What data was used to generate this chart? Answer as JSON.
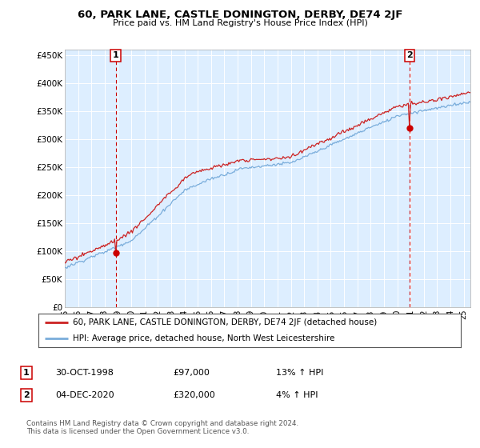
{
  "title": "60, PARK LANE, CASTLE DONINGTON, DERBY, DE74 2JF",
  "subtitle": "Price paid vs. HM Land Registry's House Price Index (HPI)",
  "ylabel_ticks": [
    "£0",
    "£50K",
    "£100K",
    "£150K",
    "£200K",
    "£250K",
    "£300K",
    "£350K",
    "£400K",
    "£450K"
  ],
  "ytick_values": [
    0,
    50000,
    100000,
    150000,
    200000,
    250000,
    300000,
    350000,
    400000,
    450000
  ],
  "ylim": [
    0,
    460000
  ],
  "xlim_start": 1995.0,
  "xlim_end": 2025.5,
  "sale1": {
    "date_num": 1998.83,
    "price": 97000,
    "label": "1"
  },
  "sale2": {
    "date_num": 2020.92,
    "price": 320000,
    "label": "2"
  },
  "sale1_color": "#cc0000",
  "sale2_color": "#cc0000",
  "hpi_line_color": "#7aaddb",
  "price_line_color": "#cc2222",
  "vline_color": "#cc0000",
  "grid_color": "#cccccc",
  "chart_bg_color": "#ddeeff",
  "background_color": "#ffffff",
  "legend_label_red": "60, PARK LANE, CASTLE DONINGTON, DERBY, DE74 2JF (detached house)",
  "legend_label_blue": "HPI: Average price, detached house, North West Leicestershire",
  "footer": "Contains HM Land Registry data © Crown copyright and database right 2024.\nThis data is licensed under the Open Government Licence v3.0.",
  "table_rows": [
    {
      "num": "1",
      "date": "30-OCT-1998",
      "price": "£97,000",
      "hpi": "13% ↑ HPI"
    },
    {
      "num": "2",
      "date": "04-DEC-2020",
      "price": "£320,000",
      "hpi": "4% ↑ HPI"
    }
  ],
  "xtick_years": [
    1995,
    1996,
    1997,
    1998,
    1999,
    2000,
    2001,
    2002,
    2003,
    2004,
    2005,
    2006,
    2007,
    2008,
    2009,
    2010,
    2011,
    2012,
    2013,
    2014,
    2015,
    2016,
    2017,
    2018,
    2019,
    2020,
    2021,
    2022,
    2023,
    2024,
    2025
  ]
}
